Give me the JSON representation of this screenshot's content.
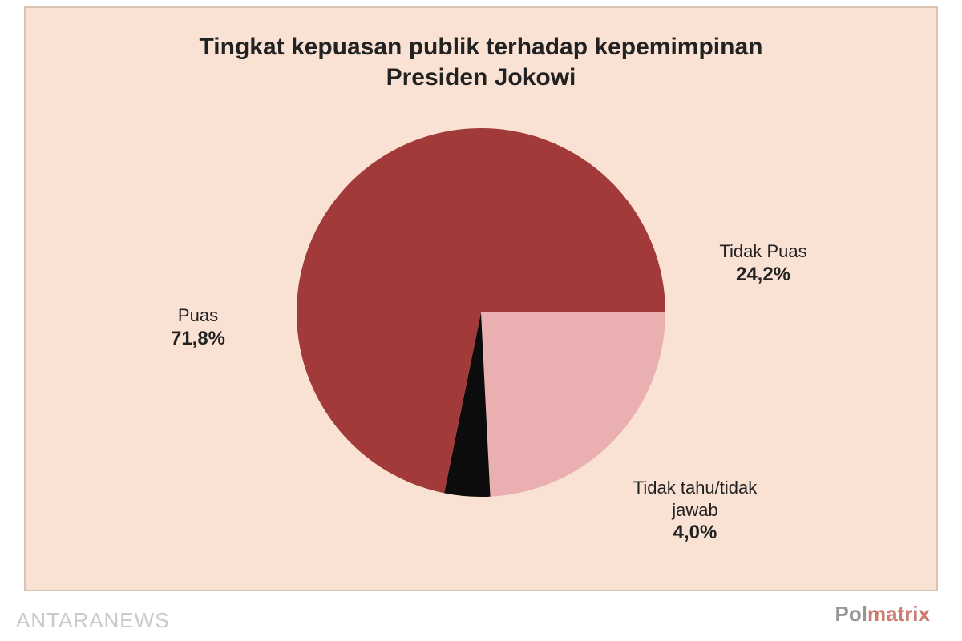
{
  "chart": {
    "type": "pie",
    "title_line1": "Tingkat kepuasan publik terhadap kepemimpinan",
    "title_line2": "Presiden Jokowi",
    "title_fontsize": 30,
    "title_color": "#222222",
    "background_color": "#f9e2d4",
    "border_color": "#d8c2b4",
    "pie_radius": 230,
    "start_angle_deg": 0,
    "slices": [
      {
        "label": "Tidak Puas",
        "value": 24.2,
        "value_text": "24,2%",
        "color": "#e9afb1"
      },
      {
        "label": "Tidak tahu/tidak\njawab",
        "value": 4.0,
        "value_text": "4,0%",
        "color": "#0c0c0c"
      },
      {
        "label": "Puas",
        "value": 71.8,
        "value_text": "71,8%",
        "color": "#a23a3a"
      }
    ],
    "label_fontsize_name": 22,
    "label_fontsize_value": 24,
    "label_color": "#222222"
  },
  "watermarks": {
    "left": "ANTARANEWS",
    "right_part1": "Pol",
    "right_part2": "matrix",
    "left_color": "#bdbdbd",
    "right_colors": [
      "#6b6b6b",
      "#b84233"
    ]
  }
}
